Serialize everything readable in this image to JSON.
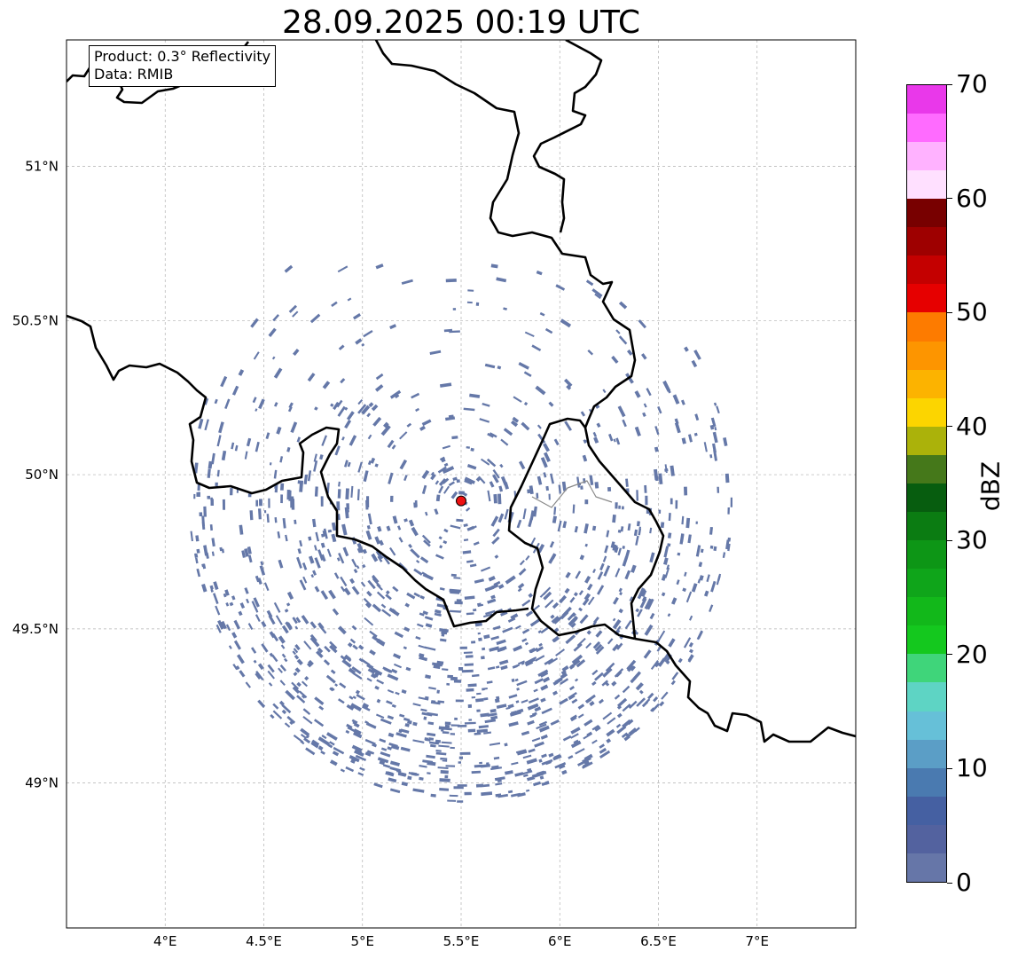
{
  "title": "28.09.2025 00:19 UTC",
  "info": {
    "product": "Product: 0.3° Reflectivity",
    "source": "Data: RMIB"
  },
  "map": {
    "lon_range": [
      3.5,
      7.5
    ],
    "lat_range": [
      48.53,
      51.41
    ],
    "lon_ticks": [
      {
        "value": 4.0,
        "label": "4°E"
      },
      {
        "value": 4.5,
        "label": "4.5°E"
      },
      {
        "value": 5.0,
        "label": "5°E"
      },
      {
        "value": 5.5,
        "label": "5.5°E"
      },
      {
        "value": 6.0,
        "label": "6°E"
      },
      {
        "value": 6.5,
        "label": "6.5°E"
      },
      {
        "value": 7.0,
        "label": "7°E"
      }
    ],
    "lat_ticks": [
      {
        "value": 49.0,
        "label": "49°N"
      },
      {
        "value": 49.5,
        "label": "49.5°N"
      },
      {
        "value": 50.0,
        "label": "50°N"
      },
      {
        "value": 50.5,
        "label": "50.5°N"
      },
      {
        "value": 51.0,
        "label": "51°N"
      }
    ],
    "radar_site": {
      "lon": 5.5,
      "lat": 49.915,
      "color": "#ee1111"
    },
    "echo_color": "#6578a8",
    "border_color": "#000000"
  },
  "colorbar": {
    "label": "dBZ",
    "min": 0,
    "max": 70,
    "ticks": [
      "0",
      "10",
      "20",
      "30",
      "40",
      "50",
      "60",
      "70"
    ],
    "colors": [
      "#6676a8",
      "#53629f",
      "#4560a2",
      "#4a7ab0",
      "#5b9ec6",
      "#66c0d8",
      "#5ed4c4",
      "#3fd57a",
      "#14c81e",
      "#12b81a",
      "#0fa51a",
      "#0d9616",
      "#0b7c12",
      "#075d0f",
      "#45781a",
      "#abb20a",
      "#fcd500",
      "#fcb300",
      "#fd9500",
      "#fd7b00",
      "#e60000",
      "#c40000",
      "#9e0000",
      "#780000",
      "#ffe0ff",
      "#ffb2ff",
      "#ff6bff",
      "#e938ea"
    ]
  }
}
